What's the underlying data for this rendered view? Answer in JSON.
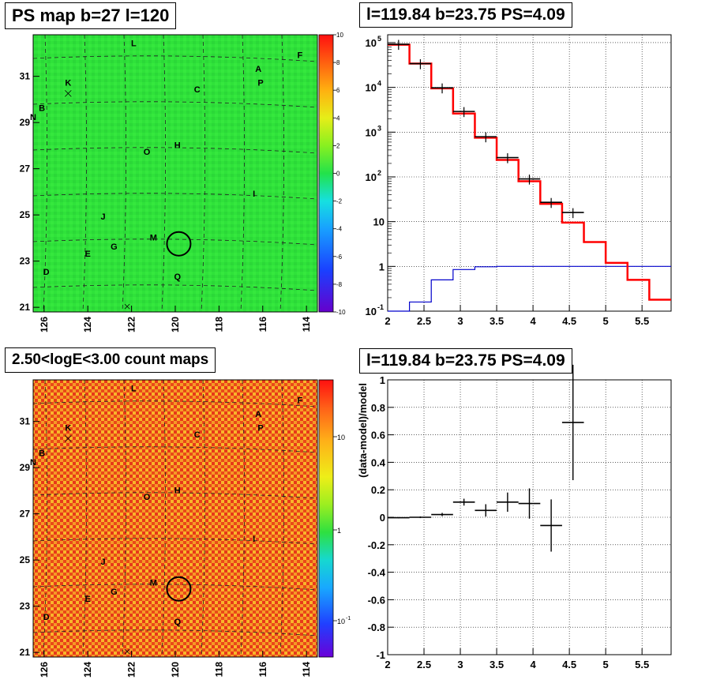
{
  "colors": {
    "ps_map_bg": "#2fe23a",
    "count_map_bg": "#f2641e",
    "red_model": "#ff0000",
    "blue_model": "#0000cc",
    "data_points": "#000000"
  },
  "panels": {
    "ps_map": {
      "title": "PS map b=27 l=120"
    },
    "spectrum": {
      "title": "l=119.84 b=23.75 PS=4.09"
    },
    "count_map": {
      "title": "2.50<logE<3.00 count maps"
    },
    "residual": {
      "title": "l=119.84 b=23.75 PS=4.09"
    }
  },
  "sky_map": {
    "x_ticks": [
      "126",
      "124",
      "122",
      "120",
      "118",
      "116",
      "114"
    ],
    "y_ticks": [
      "31",
      "29",
      "27",
      "25",
      "23",
      "21"
    ],
    "x_range": [
      126.5,
      113.5
    ],
    "y_range": [
      20.8,
      32.8
    ],
    "sources": [
      {
        "label": "L",
        "l": 121.9,
        "b": 32.3
      },
      {
        "label": "F",
        "l": 114.3,
        "b": 31.8
      },
      {
        "label": "A",
        "l": 116.2,
        "b": 31.2
      },
      {
        "label": "K",
        "l": 124.9,
        "b": 30.6
      },
      {
        "label": "P",
        "l": 116.1,
        "b": 30.6
      },
      {
        "label": "C",
        "l": 119.0,
        "b": 30.3
      },
      {
        "label": "B",
        "l": 126.1,
        "b": 29.5
      },
      {
        "label": "N",
        "l": 126.5,
        "b": 29.1
      },
      {
        "label": "O",
        "l": 121.3,
        "b": 27.6
      },
      {
        "label": "H",
        "l": 119.9,
        "b": 27.9
      },
      {
        "label": "I",
        "l": 116.4,
        "b": 25.8
      },
      {
        "label": "J",
        "l": 123.3,
        "b": 24.8
      },
      {
        "label": "M",
        "l": 121.0,
        "b": 23.9
      },
      {
        "label": "G",
        "l": 122.8,
        "b": 23.5
      },
      {
        "label": "E",
        "l": 124.0,
        "b": 23.2
      },
      {
        "label": "D",
        "l": 125.9,
        "b": 22.4
      },
      {
        "label": "Q",
        "l": 119.9,
        "b": 22.2
      }
    ]
  },
  "ps_colorbar": {
    "ticks": [
      "10",
      "8",
      "6",
      "4",
      "2",
      "0",
      "-2",
      "-4",
      "-6",
      "-8",
      "-10"
    ],
    "range": [
      -10,
      10
    ]
  },
  "count_colorbar": {
    "ticks": [
      "10",
      "1",
      "10-1"
    ]
  },
  "chart_data": [
    {
      "type": "heatmap",
      "title": "PS map b=27 l=120",
      "x_ticks": [
        126,
        124,
        122,
        120,
        118,
        116,
        114
      ],
      "y_ticks": [
        31,
        29,
        27,
        25,
        23,
        21
      ],
      "z_range": [
        -10,
        10
      ],
      "candidate": {
        "l": 119.84,
        "b": 23.75
      }
    },
    {
      "type": "line",
      "title": "l=119.84 b=23.75 PS=4.09",
      "x_ticks": [
        "2",
        "2.5",
        "3",
        "3.5",
        "4",
        "4.5",
        "5",
        "5.5"
      ],
      "y_ticks": [
        {
          "base": "10",
          "exp": "5"
        },
        {
          "base": "10",
          "exp": "4"
        },
        {
          "base": "10",
          "exp": "3"
        },
        {
          "base": "10",
          "exp": "2"
        },
        {
          "base": "10",
          "exp": ""
        },
        {
          "base": "1",
          "exp": ""
        },
        {
          "base": "10",
          "exp": "-1"
        }
      ],
      "xlim": [
        2.0,
        5.9
      ],
      "ylim": [
        0.1,
        150000
      ],
      "yscale": "log",
      "grid": true,
      "bin_edges": [
        2.0,
        2.3,
        2.6,
        2.9,
        3.2,
        3.5,
        3.8,
        4.1,
        4.4,
        4.7,
        5.0,
        5.3,
        5.6,
        5.9
      ],
      "series": [
        {
          "values": [
            90000,
            34000,
            9500,
            2600,
            750,
            240,
            80,
            25,
            9.5,
            3.5,
            1.2,
            0.5,
            0.18
          ]
        },
        {
          "values": [
            0.1,
            0.16,
            0.5,
            0.85,
            0.98,
            1.0,
            1.0,
            1.0,
            1.0,
            1.0,
            1.0,
            1.0,
            1.0
          ]
        }
      ],
      "data_points": [
        {
          "x": 2.15,
          "y": 92000
        },
        {
          "x": 2.45,
          "y": 34000
        },
        {
          "x": 2.75,
          "y": 9800
        },
        {
          "x": 3.05,
          "y": 2900
        },
        {
          "x": 3.35,
          "y": 790
        },
        {
          "x": 3.65,
          "y": 270
        },
        {
          "x": 3.95,
          "y": 90
        },
        {
          "x": 4.25,
          "y": 27
        },
        {
          "x": 4.55,
          "y": 16
        }
      ]
    },
    {
      "type": "heatmap",
      "title": "2.50<logE<3.00 count maps",
      "x_ticks": [
        126,
        124,
        122,
        120,
        118,
        116,
        114
      ],
      "y_ticks": [
        31,
        29,
        27,
        25,
        23,
        21
      ],
      "z_scale": "log"
    },
    {
      "type": "scatter",
      "title": "l=119.84 b=23.75 PS=4.09",
      "ylabel": "(data-model)/model",
      "x_ticks": [
        "2",
        "2.5",
        "3",
        "3.5",
        "4",
        "4.5",
        "5",
        "5.5"
      ],
      "y_ticks": [
        "1",
        "0.8",
        "0.6",
        "0.4",
        "0.2",
        "0",
        "-0.2",
        "-0.4",
        "-0.6",
        "-0.8",
        "-1"
      ],
      "xlim": [
        2.0,
        5.9
      ],
      "ylim": [
        -1,
        1
      ],
      "grid": true,
      "points": [
        {
          "x": 2.15,
          "y": -0.003,
          "xerr": 0.15,
          "yerr": 0.004
        },
        {
          "x": 2.45,
          "y": 0.0,
          "xerr": 0.15,
          "yerr": 0.006
        },
        {
          "x": 2.75,
          "y": 0.02,
          "xerr": 0.15,
          "yerr": 0.012
        },
        {
          "x": 3.05,
          "y": 0.11,
          "xerr": 0.15,
          "yerr": 0.025
        },
        {
          "x": 3.35,
          "y": 0.05,
          "xerr": 0.15,
          "yerr": 0.045
        },
        {
          "x": 3.65,
          "y": 0.11,
          "xerr": 0.15,
          "yerr": 0.07
        },
        {
          "x": 3.95,
          "y": 0.1,
          "xerr": 0.15,
          "yerr": 0.11
        },
        {
          "x": 4.25,
          "y": -0.06,
          "xerr": 0.15,
          "yerr": 0.19
        },
        {
          "x": 4.55,
          "y": 0.69,
          "xerr": 0.15,
          "yerr": 0.42
        }
      ]
    }
  ]
}
